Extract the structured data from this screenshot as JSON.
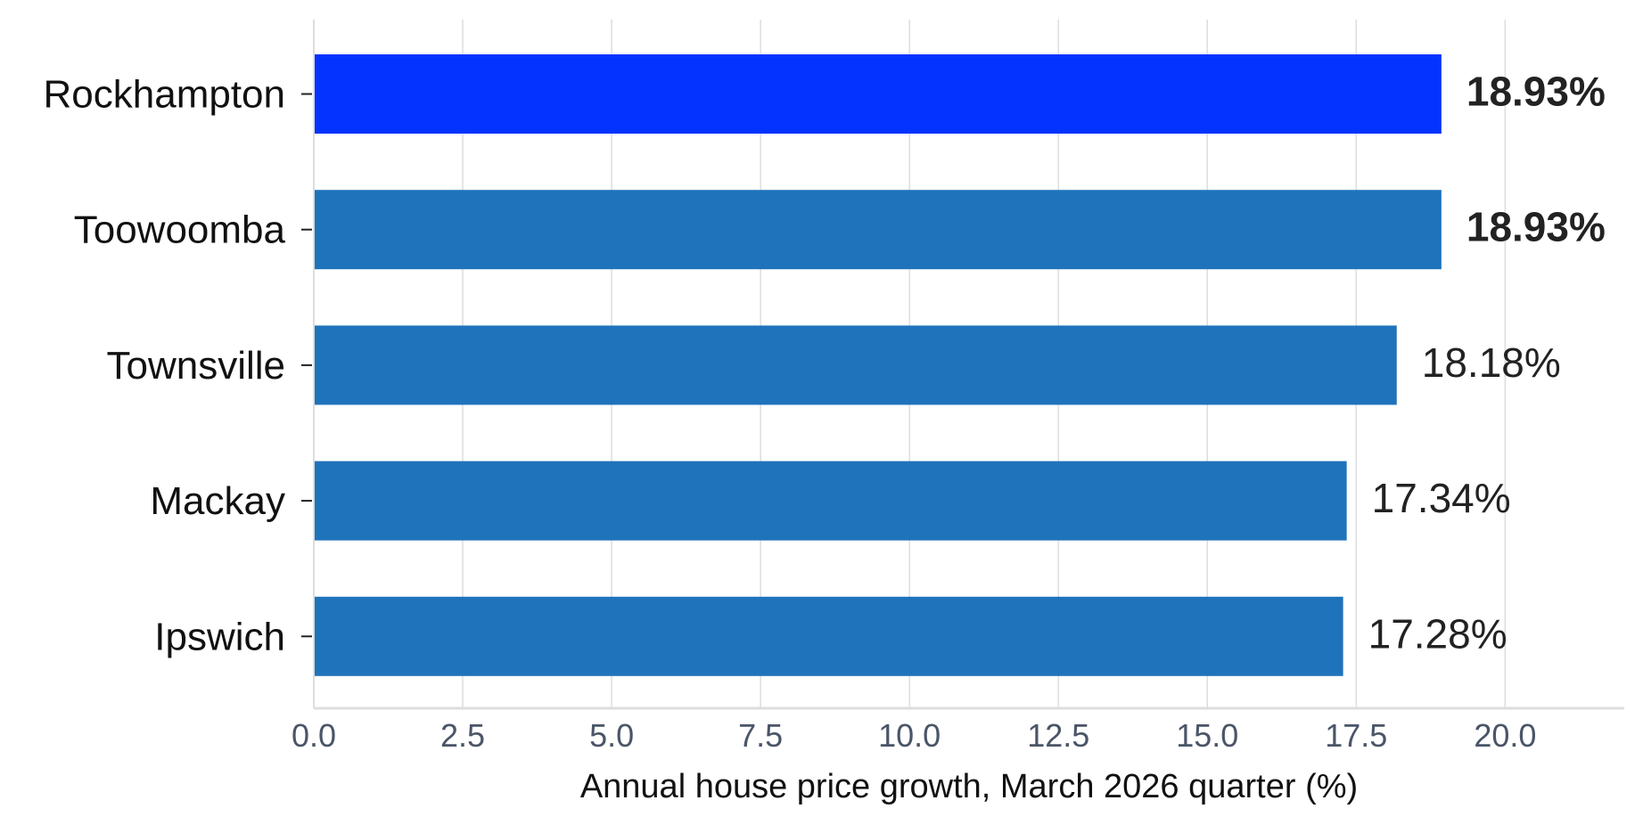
{
  "chart_data": {
    "type": "bar",
    "orientation": "horizontal",
    "categories": [
      "Rockhampton",
      "Toowoomba",
      "Townsville",
      "Mackay",
      "Ipswich"
    ],
    "values": [
      18.93,
      18.93,
      18.18,
      17.34,
      17.28
    ],
    "value_labels": [
      "18.93%",
      "18.93%",
      "18.18%",
      "17.34%",
      "17.28%"
    ],
    "highlight": [
      true,
      false,
      false,
      false,
      false
    ],
    "bold_labels": [
      true,
      true,
      false,
      false,
      false
    ],
    "title": "",
    "xlabel": "Annual house price growth, March 2026 quarter (%)",
    "ylabel": "",
    "xlim": [
      0,
      22
    ],
    "xticks": [
      0,
      2.5,
      5,
      7.5,
      10,
      12.5,
      15,
      17.5,
      20
    ],
    "xtick_labels": [
      "0.0",
      "2.5",
      "5.0",
      "7.5",
      "10.0",
      "12.5",
      "15.0",
      "17.5",
      "20.0"
    ],
    "grid": "vertical",
    "legend": "none",
    "colors": {
      "bar": "#1f73bb",
      "highlight_bar": "#0433ff",
      "grid": "#dddddd",
      "axis": "#dddddd",
      "tick_label": "#4a5568",
      "category_label": "#111111",
      "value_label": "#222222"
    }
  }
}
